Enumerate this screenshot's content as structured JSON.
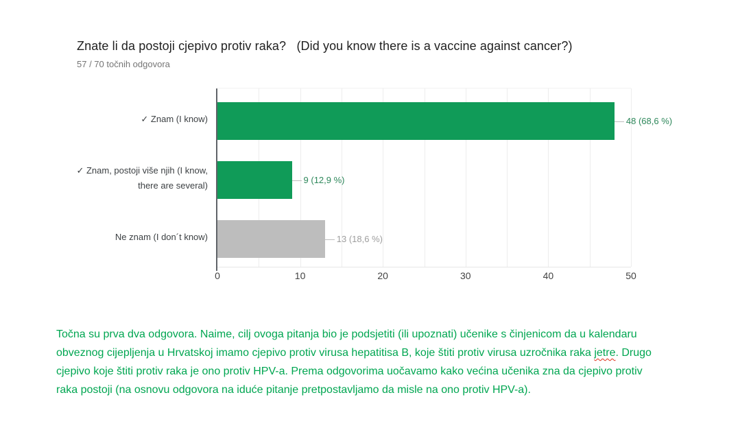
{
  "question": {
    "title": "Znate li da postoji cjepivo protiv raka?   (Did you know there is a vaccine against cancer?)",
    "score_summary": "57 / 70 točnih odgovora"
  },
  "chart_data": {
    "type": "bar",
    "orientation": "horizontal",
    "title": "Znate li da postoji cjepivo protiv raka?   (Did you know there is a vaccine against cancer?)",
    "subtitle": "57 / 70 točnih odgovora",
    "categories": [
      "✓ Znam (I know)",
      "✓ Znam, postoji više njih (I know, there are several)",
      "Ne znam (I don´t know)"
    ],
    "category_label_lines": [
      [
        "✓ Znam (I know)"
      ],
      [
        "✓ Znam, postoji više njih (I know,",
        "there are several)"
      ],
      [
        "Ne znam (I don´t know)"
      ]
    ],
    "values": [
      48,
      9,
      13
    ],
    "percentages": [
      68.6,
      12.9,
      18.6
    ],
    "value_labels": [
      "48 (68,6 %)",
      "9 (12,9 %)",
      "13 (18,6 %)"
    ],
    "bar_colors": [
      "#109b58",
      "#109b58",
      "#bdbdbd"
    ],
    "value_label_colors": [
      "#2d875a",
      "#2d875a",
      "#9e9e9e"
    ],
    "x_ticks": [
      0,
      10,
      20,
      30,
      40,
      50
    ],
    "xlim": [
      0,
      50
    ],
    "gridline_step": 5,
    "grid": true,
    "legend": "none",
    "correct_answer_indices": [
      0,
      1
    ]
  },
  "comment": {
    "color": "#00a651",
    "lines": [
      [
        {
          "text": "Točna su prva dva odgovora. Naime, cilj ovoga pitanja bio je podsjetiti (ili upoznati) učenike s činjenicom da u kalendaru"
        }
      ],
      [
        {
          "text": "obveznog cijepljenja u Hrvatskoj imamo cjepivo protiv virusa hepatitisa B, koje štiti protiv virusa uzročnika raka "
        },
        {
          "text": "jetre",
          "misspelled": true
        },
        {
          "text": ". Drugo"
        }
      ],
      [
        {
          "text": "cjepivo koje štiti protiv raka je ono protiv HPV-a. Prema odgovorima uočavamo kako većina učenika zna da cjepivo protiv"
        }
      ],
      [
        {
          "text": "raka postoji (na osnovu odgovora na iduće pitanje pretpostavljamo da misle na ono protiv HPV-a)."
        }
      ]
    ]
  }
}
